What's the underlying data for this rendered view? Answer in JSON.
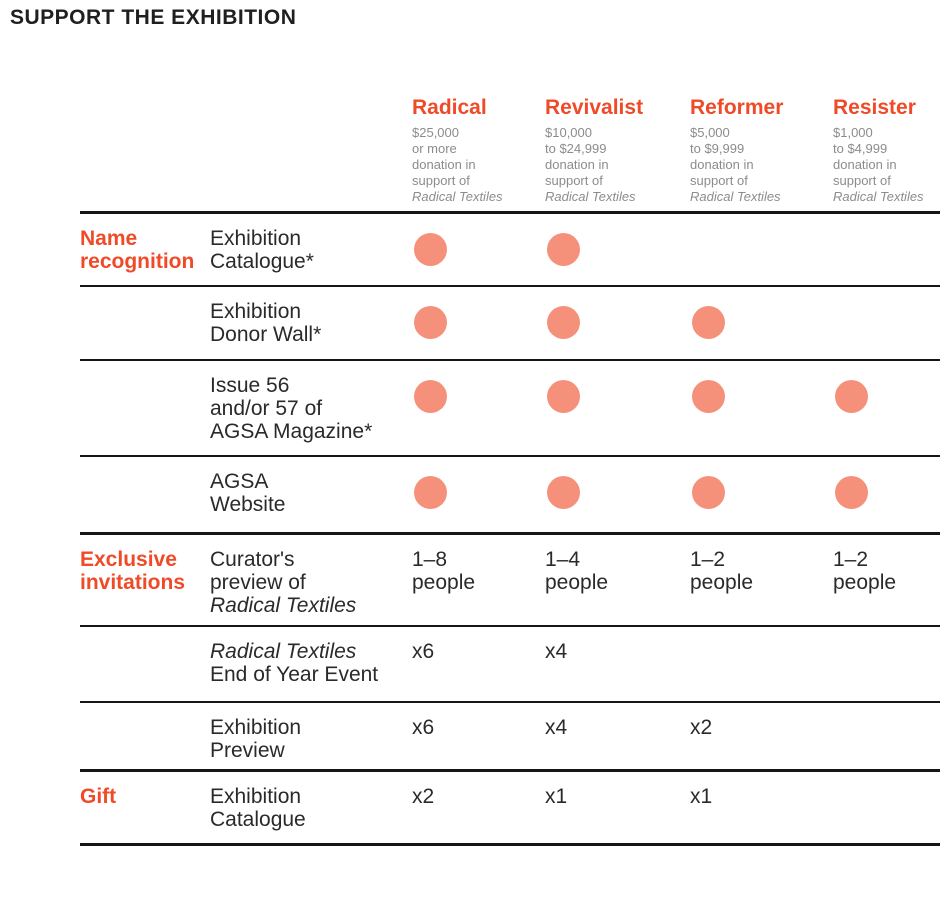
{
  "page": {
    "title": "SUPPORT THE EXHIBITION"
  },
  "colors": {
    "accent_orange": "#F04B28",
    "dot_salmon": "#F5917A",
    "text_dark": "#2A2A2A",
    "text_grey": "#8C8C8C",
    "rule_black": "#161616"
  },
  "tiers": [
    {
      "name": "Radical",
      "desc_lines": [
        "$25,000",
        "or more",
        "donation in",
        "support of",
        "Radical Textiles"
      ]
    },
    {
      "name": "Revivalist",
      "desc_lines": [
        "$10,000",
        "to $24,999",
        "donation in",
        "support of",
        "Radical Textiles"
      ]
    },
    {
      "name": "Reformer",
      "desc_lines": [
        "$5,000",
        "to $9,999",
        "donation in",
        "support of",
        "Radical Textiles"
      ]
    },
    {
      "name": "Resister",
      "desc_lines": [
        "$1,000",
        "to $4,999",
        "donation in",
        "support of",
        "Radical Textiles"
      ]
    }
  ],
  "sections": [
    {
      "label_lines": [
        "Name",
        "recognition"
      ],
      "rows": [
        {
          "benefit_lines": [
            "Exhibition",
            "Catalogue*"
          ],
          "values": [
            "dot",
            "dot",
            "",
            ""
          ]
        },
        {
          "benefit_lines": [
            "Exhibition",
            "Donor Wall*"
          ],
          "values": [
            "dot",
            "dot",
            "dot",
            ""
          ]
        },
        {
          "benefit_lines": [
            "Issue 56",
            "and/or 57 of",
            "AGSA Magazine*"
          ],
          "values": [
            "dot",
            "dot",
            "dot",
            "dot"
          ]
        },
        {
          "benefit_lines": [
            "AGSA",
            "Website"
          ],
          "values": [
            "dot",
            "dot",
            "dot",
            "dot"
          ]
        }
      ]
    },
    {
      "label_lines": [
        "Exclusive",
        "invitations"
      ],
      "rows": [
        {
          "benefit_lines": [
            "Curator's",
            "preview of",
            "Radical Textiles"
          ],
          "values": [
            "1–8\npeople",
            "1–4\npeople",
            "1–2\npeople",
            "1–2\npeople"
          ]
        },
        {
          "benefit_lines": [
            "Radical Textiles",
            "End of Year Event"
          ],
          "values": [
            "x6",
            "x4",
            "",
            ""
          ]
        },
        {
          "benefit_lines": [
            "Exhibition",
            "Preview"
          ],
          "values": [
            "x6",
            "x4",
            "x2",
            ""
          ]
        }
      ]
    },
    {
      "label_lines": [
        "Gift"
      ],
      "rows": [
        {
          "benefit_lines": [
            "Exhibition",
            "Catalogue"
          ],
          "values": [
            "x2",
            "x1",
            "x1",
            ""
          ]
        }
      ]
    }
  ]
}
